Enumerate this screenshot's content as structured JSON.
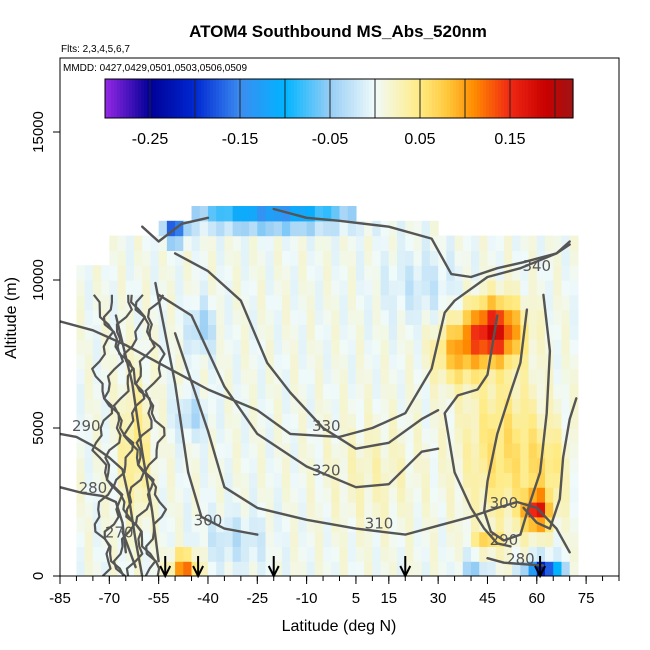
{
  "chart_data": {
    "type": "heatmap",
    "title": "ATOM4 Southbound MS_Abs_520nm",
    "flights_note": "Flts: 2,3,4,5,6,7",
    "dates_note": "MMDD: 0427,0429,0501,0503,0506,0509",
    "xlabel": "Latitude (deg N)",
    "ylabel": "Altitude (m)",
    "xlim": [
      -85,
      85
    ],
    "ylim": [
      0,
      17500
    ],
    "x_ticks": [
      -85,
      -70,
      -55,
      -40,
      -25,
      -10,
      5,
      15,
      30,
      45,
      60,
      75
    ],
    "y_ticks": [
      0,
      5000,
      10000,
      15000
    ],
    "colorbar": {
      "range": [
        -0.3,
        0.22
      ],
      "ticks": [
        -0.25,
        -0.15,
        -0.05,
        0.05,
        0.15
      ],
      "tick_labels": [
        "-0.25",
        "-0.15",
        "-0.05",
        "0.05",
        "0.15"
      ]
    },
    "contour_labels": [
      {
        "text": "340",
        "lat": 60,
        "alt": 10300
      },
      {
        "text": "330",
        "lat": -4,
        "alt": 4900
      },
      {
        "text": "320",
        "lat": -4,
        "alt": 3400
      },
      {
        "text": "310",
        "lat": 12,
        "alt": 1600
      },
      {
        "text": "300",
        "lat": -40,
        "alt": 1700
      },
      {
        "text": "290",
        "lat": -77,
        "alt": 4900
      },
      {
        "text": "280",
        "lat": -75,
        "alt": 2800
      },
      {
        "text": "270",
        "lat": -67,
        "alt": 1300
      },
      {
        "text": "300",
        "lat": 50,
        "alt": 2300
      },
      {
        "text": "290",
        "lat": 50,
        "alt": 1050
      },
      {
        "text": "280",
        "lat": 55,
        "alt": 400
      }
    ],
    "profile_markers_lat": [
      -53,
      -43,
      -20,
      20,
      61
    ]
  }
}
